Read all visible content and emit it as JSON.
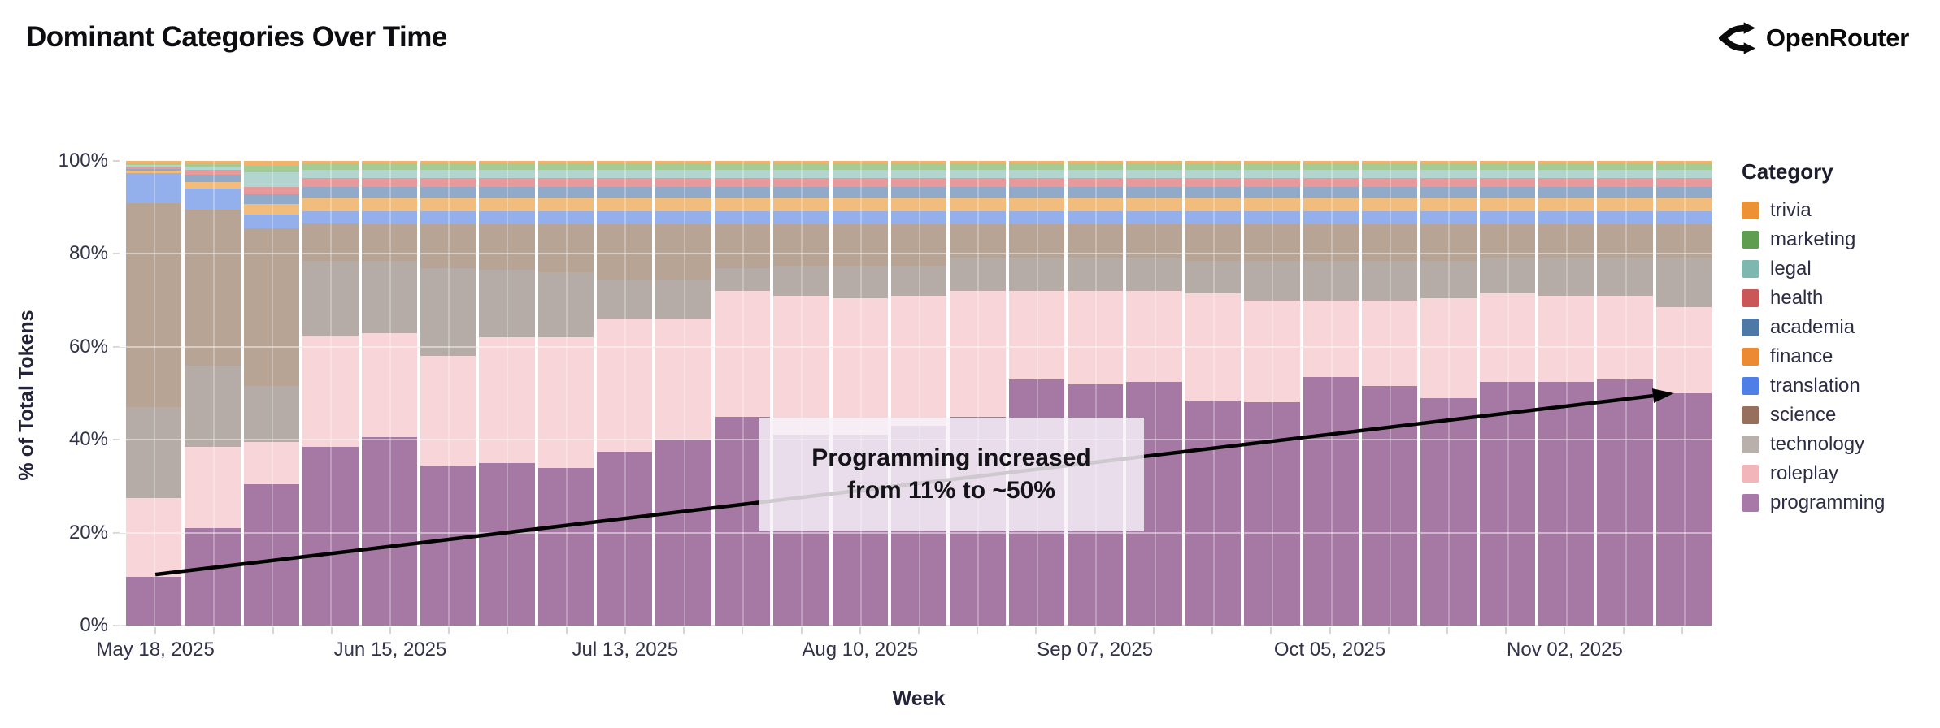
{
  "page": {
    "title": "Dominant Categories Over Time",
    "brand": "OpenRouter"
  },
  "chart_data": {
    "type": "bar",
    "subtype": "stacked-100-percent",
    "title": "Dominant Categories Over Time",
    "xlabel": "Week",
    "ylabel": "% of Total Tokens",
    "ylim": [
      0,
      100
    ],
    "grid": true,
    "legend_title": "Category",
    "legend_position": "right",
    "yticks": [
      "0%",
      "20%",
      "40%",
      "60%",
      "80%",
      "100%"
    ],
    "categories": [
      "May 18, 2025",
      "May 25, 2025",
      "Jun 01, 2025",
      "Jun 08, 2025",
      "Jun 15, 2025",
      "Jun 22, 2025",
      "Jun 29, 2025",
      "Jul 06, 2025",
      "Jul 13, 2025",
      "Jul 20, 2025",
      "Jul 27, 2025",
      "Aug 03, 2025",
      "Aug 10, 2025",
      "Aug 17, 2025",
      "Aug 24, 2025",
      "Aug 31, 2025",
      "Sep 07, 2025",
      "Sep 14, 2025",
      "Sep 21, 2025",
      "Sep 28, 2025",
      "Oct 05, 2025",
      "Oct 12, 2025",
      "Oct 19, 2025",
      "Oct 26, 2025",
      "Nov 02, 2025",
      "Nov 09, 2025",
      "Nov 16, 2025"
    ],
    "x_tick_shown_indices": [
      0,
      4,
      8,
      12,
      16,
      20,
      24
    ],
    "x_tick_shown_labels": [
      "May 18, 2025",
      "Jun 15, 2025",
      "Jul 13, 2025",
      "Aug 10, 2025",
      "Sep 07, 2025",
      "Oct 05, 2025",
      "Nov 02, 2025"
    ],
    "stack_order_bottom_to_top": [
      "programming",
      "roleplay",
      "technology",
      "science",
      "translation",
      "finance",
      "academia",
      "health",
      "legal",
      "marketing",
      "trivia"
    ],
    "series": [
      {
        "name": "trivia",
        "legend_color": "#ED9135",
        "chart_color": "#F3B269",
        "values": [
          0.5,
          0.5,
          1.0,
          0.5,
          0.5,
          0.5,
          0.5,
          0.5,
          0.5,
          0.5,
          0.5,
          0.5,
          0.5,
          0.5,
          0.5,
          0.5,
          0.5,
          0.5,
          0.5,
          0.5,
          0.5,
          0.5,
          0.5,
          0.5,
          0.5,
          0.5,
          0.5
        ]
      },
      {
        "name": "marketing",
        "legend_color": "#5F9E50",
        "chart_color": "#A4CB93",
        "values": [
          0.3,
          0.8,
          1.5,
          1.4,
          1.4,
          1.4,
          1.4,
          1.4,
          1.4,
          1.4,
          1.4,
          1.4,
          1.4,
          1.4,
          1.4,
          1.4,
          1.4,
          1.4,
          1.4,
          1.4,
          1.4,
          1.4,
          1.4,
          1.4,
          1.4,
          1.4,
          1.4
        ]
      },
      {
        "name": "legal",
        "legend_color": "#7EB7AF",
        "chart_color": "#B2D6CF",
        "values": [
          0.4,
          0.7,
          3.0,
          1.8,
          1.8,
          1.8,
          1.8,
          1.8,
          1.8,
          1.8,
          1.8,
          1.8,
          1.8,
          1.8,
          1.8,
          1.8,
          1.8,
          1.8,
          1.8,
          1.8,
          1.8,
          1.8,
          1.8,
          1.8,
          1.8,
          1.8,
          1.8
        ]
      },
      {
        "name": "health",
        "legend_color": "#CB5658",
        "chart_color": "#E69A9C",
        "values": [
          0.6,
          1.0,
          1.6,
          1.8,
          1.8,
          1.8,
          1.8,
          1.8,
          1.8,
          1.8,
          1.8,
          1.8,
          1.8,
          1.8,
          1.8,
          1.8,
          1.8,
          1.8,
          1.8,
          1.8,
          1.8,
          1.8,
          1.8,
          1.8,
          1.8,
          1.8,
          1.8
        ]
      },
      {
        "name": "academia",
        "legend_color": "#4E79A7",
        "chart_color": "#91AAC9",
        "values": [
          0.3,
          1.5,
          2.2,
          2.6,
          2.6,
          2.6,
          2.6,
          2.6,
          2.6,
          2.6,
          2.6,
          2.6,
          2.6,
          2.6,
          2.6,
          2.6,
          2.6,
          2.6,
          2.6,
          2.6,
          2.6,
          2.6,
          2.6,
          2.6,
          2.6,
          2.6,
          2.6
        ]
      },
      {
        "name": "finance",
        "legend_color": "#EC8A33",
        "chart_color": "#F1BC7C",
        "values": [
          0.6,
          1.5,
          2.2,
          2.8,
          2.8,
          2.8,
          2.8,
          2.8,
          2.8,
          2.8,
          2.8,
          2.8,
          2.8,
          2.8,
          2.8,
          2.8,
          2.8,
          2.8,
          2.8,
          2.8,
          2.8,
          2.8,
          2.8,
          2.8,
          2.8,
          2.8,
          2.8
        ]
      },
      {
        "name": "translation",
        "legend_color": "#4F7FE6",
        "chart_color": "#93B0EC",
        "values": [
          6.3,
          4.5,
          3.0,
          2.6,
          2.8,
          2.8,
          2.8,
          2.8,
          2.8,
          2.8,
          2.8,
          2.8,
          2.8,
          2.8,
          2.8,
          2.8,
          2.8,
          2.8,
          2.8,
          2.8,
          2.8,
          2.8,
          2.8,
          2.8,
          2.8,
          2.8,
          2.8
        ]
      },
      {
        "name": "science",
        "legend_color": "#96705C",
        "chart_color": "#B7A494",
        "values": [
          44.0,
          33.5,
          34.0,
          8.0,
          7.8,
          9.3,
          9.8,
          10.3,
          11.8,
          11.8,
          9.3,
          8.8,
          8.8,
          8.8,
          7.3,
          7.3,
          7.3,
          7.3,
          7.8,
          7.8,
          7.8,
          7.8,
          7.8,
          7.3,
          7.3,
          7.3,
          7.3
        ]
      },
      {
        "name": "technology",
        "legend_color": "#BAB0AB",
        "chart_color": "#B5ACA7",
        "values": [
          19.5,
          17.5,
          12.0,
          16.0,
          15.5,
          19.0,
          14.5,
          14.0,
          8.5,
          8.5,
          5.0,
          6.5,
          7.0,
          6.5,
          7.0,
          7.0,
          7.0,
          7.0,
          7.0,
          8.5,
          8.5,
          8.5,
          8.0,
          7.5,
          8.0,
          8.0,
          10.5
        ]
      },
      {
        "name": "roleplay",
        "legend_color": "#F2B5B9",
        "chart_color": "#F8D5D9",
        "values": [
          17.0,
          17.5,
          9.0,
          24.0,
          22.5,
          23.5,
          27.0,
          28.0,
          28.5,
          26.0,
          27.0,
          30.0,
          29.5,
          28.0,
          27.0,
          19.0,
          20.0,
          19.5,
          23.0,
          22.0,
          16.5,
          18.5,
          21.5,
          19.0,
          18.5,
          18.0,
          18.5
        ]
      },
      {
        "name": "programming",
        "legend_color": "#A878A8",
        "chart_color": "#A679A4",
        "values": [
          10.5,
          21.0,
          30.5,
          38.5,
          40.5,
          34.5,
          35.0,
          34.0,
          37.5,
          40.0,
          45.0,
          41.0,
          41.0,
          43.0,
          45.0,
          53.0,
          52.0,
          52.5,
          48.5,
          48.0,
          53.5,
          51.5,
          49.0,
          52.5,
          52.5,
          53.0,
          50.0
        ]
      }
    ],
    "annotation": {
      "line1": "Programming increased",
      "line2": "from 11% to ~50%",
      "arrow_from_week": "May 18, 2025",
      "arrow_from_value": 11,
      "arrow_to_week": "Nov 16, 2025",
      "arrow_to_value": 50,
      "arrow_color": "#000000"
    },
    "colors": {
      "axis_text": "#32324a",
      "title_text": "#0d0d12",
      "annotation_bg": "rgba(247,242,249,0.83)"
    }
  }
}
